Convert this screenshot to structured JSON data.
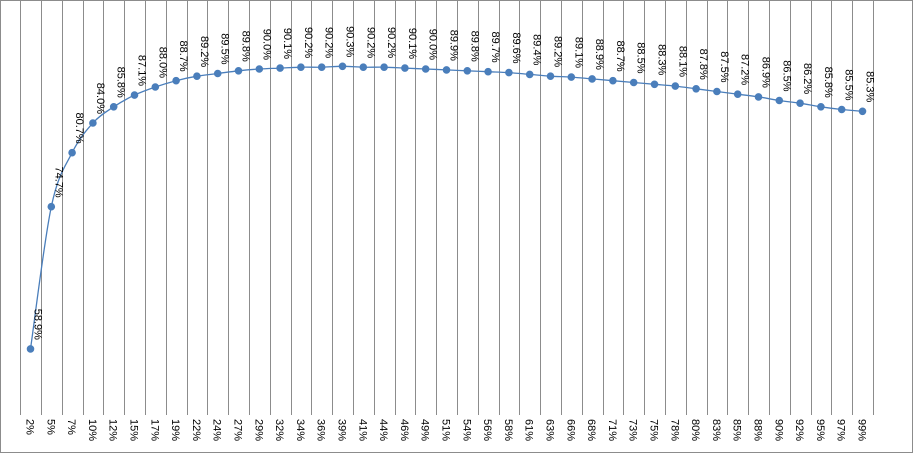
{
  "chart_data": {
    "type": "line",
    "title": "",
    "xlabel": "",
    "ylabel": "",
    "grid": "vertical",
    "legend": "none",
    "ylim": [
      52,
      92
    ],
    "categories": [
      "2%",
      "5%",
      "7%",
      "10%",
      "12%",
      "15%",
      "17%",
      "19%",
      "22%",
      "24%",
      "27%",
      "29%",
      "32%",
      "34%",
      "36%",
      "39%",
      "41%",
      "44%",
      "46%",
      "49%",
      "51%",
      "54%",
      "56%",
      "58%",
      "61%",
      "63%",
      "66%",
      "68%",
      "71%",
      "73%",
      "75%",
      "78%",
      "80%",
      "83%",
      "85%",
      "88%",
      "90%",
      "92%",
      "95%",
      "97%",
      "99%"
    ],
    "values": [
      58.9,
      74.7,
      80.7,
      84.0,
      85.8,
      87.1,
      88.0,
      88.7,
      89.2,
      89.5,
      89.8,
      90.0,
      90.1,
      90.2,
      90.2,
      90.3,
      90.2,
      90.2,
      90.1,
      90.0,
      89.9,
      89.8,
      89.7,
      89.6,
      89.4,
      89.2,
      89.1,
      88.9,
      88.7,
      88.5,
      88.3,
      88.1,
      87.8,
      87.5,
      87.2,
      86.9,
      86.5,
      86.2,
      85.8,
      85.5,
      85.3
    ],
    "data_labels": [
      "58.9%",
      "74.7%",
      "80.7%",
      "84.0%",
      "85.8%",
      "87.1%",
      "88.0%",
      "88.7%",
      "89.2%",
      "89.5%",
      "89.8%",
      "90.0%",
      "90.1%",
      "90.2%",
      "90.2%",
      "90.3%",
      "90.2%",
      "90.2%",
      "90.1%",
      "90.0%",
      "89.9%",
      "89.8%",
      "89.7%",
      "89.6%",
      "89.4%",
      "89.2%",
      "89.1%",
      "88.9%",
      "88.7%",
      "88.5%",
      "88.3%",
      "88.1%",
      "87.8%",
      "87.5%",
      "87.2%",
      "86.9%",
      "86.5%",
      "86.2%",
      "85.8%",
      "85.5%",
      "85.3%"
    ],
    "colors": {
      "series": "#4a7ebb",
      "grid": "#8c8c8c",
      "frame": "#8c8c8c"
    }
  }
}
